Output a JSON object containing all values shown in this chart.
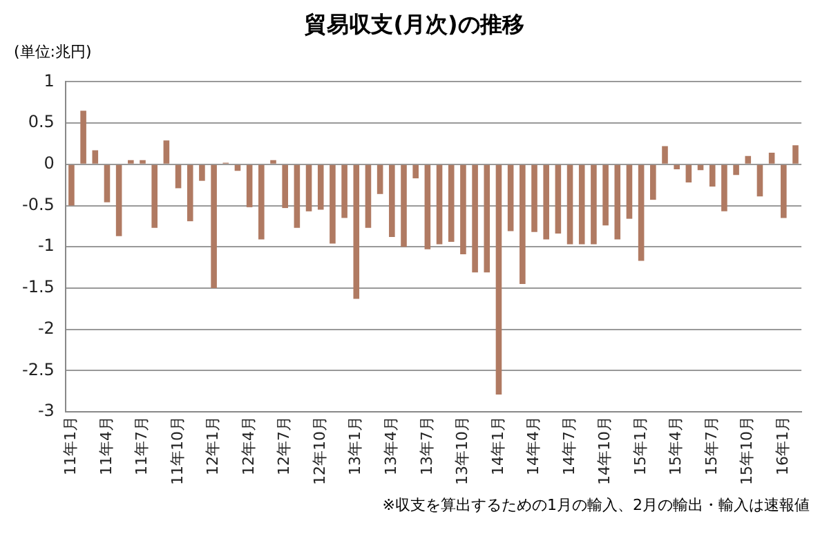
{
  "chart_data": {
    "type": "bar",
    "title": "貿易収支(月次)の推移",
    "ylabel": "(単位:兆円)",
    "categories": [
      "11年1月",
      null,
      null,
      "11年4月",
      null,
      null,
      "11年7月",
      null,
      null,
      "11年10月",
      null,
      null,
      "12年1月",
      null,
      null,
      "12年4月",
      null,
      null,
      "12年7月",
      null,
      null,
      "12年10月",
      null,
      null,
      "13年1月",
      null,
      null,
      "13年4月",
      null,
      null,
      "13年7月",
      null,
      null,
      "13年10月",
      null,
      null,
      "14年1月",
      null,
      null,
      "14年4月",
      null,
      null,
      "14年7月",
      null,
      null,
      "14年10月",
      null,
      null,
      "15年1月",
      null,
      null,
      "15年4月",
      null,
      null,
      "15年7月",
      null,
      null,
      "15年10月",
      null,
      null,
      "16年1月",
      null
    ],
    "values": [
      -0.5,
      0.65,
      0.17,
      -0.46,
      -0.87,
      0.05,
      0.05,
      -0.77,
      0.29,
      -0.29,
      -0.69,
      -0.2,
      -1.5,
      0.02,
      -0.08,
      -0.52,
      -0.91,
      0.05,
      -0.53,
      -0.77,
      -0.57,
      -0.55,
      -0.96,
      -0.65,
      -1.63,
      -0.77,
      -0.36,
      -0.88,
      -1.0,
      -0.17,
      -1.03,
      -0.97,
      -0.94,
      -1.09,
      -1.31,
      -1.31,
      -2.79,
      -0.81,
      -1.45,
      -0.82,
      -0.91,
      -0.84,
      -0.97,
      -0.97,
      -0.97,
      -0.74,
      -0.91,
      -0.66,
      -1.17,
      -0.43,
      0.22,
      -0.06,
      -0.22,
      -0.07,
      -0.27,
      -0.57,
      -0.13,
      0.1,
      -0.39,
      0.14,
      -0.65,
      0.23
    ],
    "color": "#b07a62",
    "ylim": [
      -3,
      1
    ],
    "yticks": [
      -3,
      -2.5,
      -2,
      -1.5,
      -1,
      -0.5,
      0,
      0.5,
      1
    ],
    "grid": "y",
    "annotations": [
      "※収支を算出するための1月の輸入、2月の輸出・輸入は速報値"
    ]
  }
}
